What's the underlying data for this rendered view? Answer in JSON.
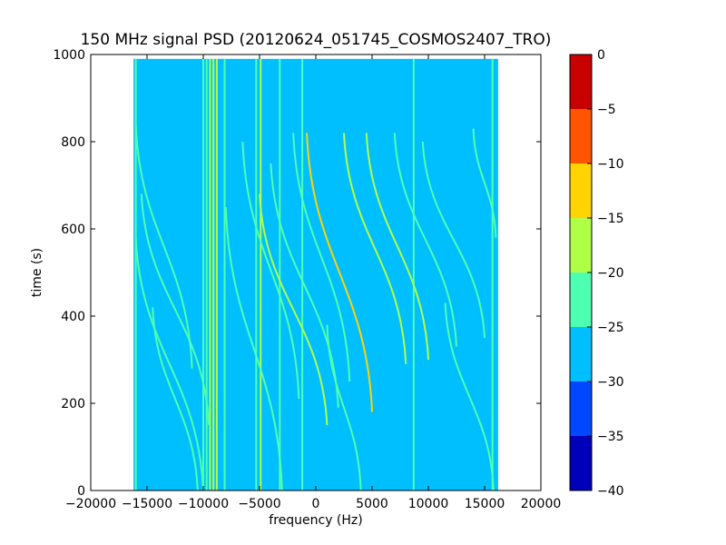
{
  "chart_data": {
    "type": "heatmap",
    "title": "150 MHz signal PSD (20120624_051745_COSMOS2407_TRO)",
    "xlabel": "frequency (Hz)",
    "ylabel": "time (s)",
    "xlim": [
      -20000,
      20000
    ],
    "ylim": [
      0,
      1000
    ],
    "x_ticks": [
      -20000,
      -15000,
      -10000,
      -5000,
      0,
      5000,
      10000,
      15000,
      20000
    ],
    "x_tick_labels": [
      "−20000",
      "−15000",
      "−10000",
      "−5000",
      "0",
      "5000",
      "10000",
      "15000",
      "20000"
    ],
    "y_ticks": [
      0,
      200,
      400,
      600,
      800,
      1000
    ],
    "y_tick_labels": [
      "0",
      "200",
      "400",
      "600",
      "800",
      "1000"
    ],
    "data_extent": {
      "x": [
        -16200,
        16200
      ],
      "y": [
        0,
        990
      ]
    },
    "background_level": -28,
    "colorbar": {
      "levels": [
        -40,
        -35,
        -30,
        -25,
        -20,
        -15,
        -10,
        -5,
        0
      ],
      "tick_labels": [
        "−40",
        "−35",
        "−30",
        "−25",
        "−20",
        "−15",
        "−10",
        "−5",
        "0"
      ],
      "colors": [
        "#0000bb",
        "#0047ff",
        "#00bfff",
        "#4dffb0",
        "#b0ff47",
        "#ffd400",
        "#ff5500",
        "#c80000"
      ]
    },
    "vertical_lines": [
      {
        "f": -16000,
        "level": -24
      },
      {
        "f": -10000,
        "level": -22
      },
      {
        "f": -9700,
        "level": -21
      },
      {
        "f": -9400,
        "level": -20
      },
      {
        "f": -9100,
        "level": -19
      },
      {
        "f": -8800,
        "level": -20
      },
      {
        "f": -8100,
        "level": -21
      },
      {
        "f": -5300,
        "level": -22
      },
      {
        "f": -4900,
        "level": -19
      },
      {
        "f": -3200,
        "level": -23
      },
      {
        "f": -1200,
        "level": -21
      },
      {
        "f": 8700,
        "level": -23
      },
      {
        "f": 15700,
        "level": -24
      }
    ],
    "doppler_tracks": [
      {
        "f_top": -16000,
        "t_top": 580,
        "f_bottom": -10000,
        "t_bottom": 0,
        "level": -23
      },
      {
        "f_top": -16000,
        "t_top": 840,
        "f_bottom": -11000,
        "t_bottom": 280,
        "level": -24
      },
      {
        "f_top": -15500,
        "t_top": 680,
        "f_bottom": -9500,
        "t_bottom": 150,
        "level": -23
      },
      {
        "f_top": -14500,
        "t_top": 420,
        "f_bottom": -10500,
        "t_bottom": 0,
        "level": -24
      },
      {
        "f_top": -8000,
        "t_top": 650,
        "f_bottom": -3000,
        "t_bottom": 0,
        "level": -24
      },
      {
        "f_top": -6500,
        "t_top": 800,
        "f_bottom": -1500,
        "t_bottom": 210,
        "level": -23
      },
      {
        "f_top": -5000,
        "t_top": 680,
        "f_bottom": 1000,
        "t_bottom": 150,
        "level": -19
      },
      {
        "f_top": -4000,
        "t_top": 750,
        "f_bottom": 2000,
        "t_bottom": 190,
        "level": -22
      },
      {
        "f_top": -2000,
        "t_top": 820,
        "f_bottom": 3000,
        "t_bottom": 250,
        "level": -22
      },
      {
        "f_top": -800,
        "t_top": 820,
        "f_bottom": 5000,
        "t_bottom": 180,
        "level": -13
      },
      {
        "f_top": 1000,
        "t_top": 380,
        "f_bottom": 4000,
        "t_bottom": 0,
        "level": -24
      },
      {
        "f_top": 2500,
        "t_top": 820,
        "f_bottom": 8000,
        "t_bottom": 290,
        "level": -19
      },
      {
        "f_top": 4500,
        "t_top": 820,
        "f_bottom": 10000,
        "t_bottom": 300,
        "level": -18
      },
      {
        "f_top": 7000,
        "t_top": 820,
        "f_bottom": 12500,
        "t_bottom": 330,
        "level": -22
      },
      {
        "f_top": 9500,
        "t_top": 800,
        "f_bottom": 15000,
        "t_bottom": 350,
        "level": -22
      },
      {
        "f_top": 11500,
        "t_top": 430,
        "f_bottom": 15800,
        "t_bottom": 0,
        "level": -24
      },
      {
        "f_top": 14000,
        "t_top": 830,
        "f_bottom": 16000,
        "t_bottom": 580,
        "level": -23
      }
    ]
  }
}
